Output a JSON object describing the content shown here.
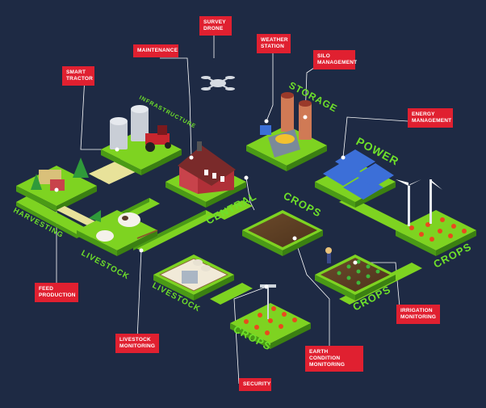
{
  "callouts": {
    "survey_drone": "SURVEY\nDRONE",
    "maintenance": "MAINTENANCE",
    "weather_station": "WEATHER\nSTATION",
    "silo_management": "SILO\nMANAGEMENT",
    "smart_tractor": "SMART\nTRACTOR",
    "energy_management": "ENERGY\nMANAGEMENT",
    "feed_production": "FEED\nPRODUCTION",
    "irrigation_monitoring": "IRRIGATION\nMONITORING",
    "livestock_monitoring": "LIVESTOCK\nMONITORING",
    "earth_condition_monitoring": "EARTH CONDITION\nMONITORING",
    "security": "SECURITY"
  },
  "areas": {
    "infrastructure": "INFRASTRUCTURE",
    "storage": "STORAGE",
    "power": "POWER",
    "central": "CENTRAL",
    "crops_center": "CROPS",
    "crops_right": "CROPS",
    "crops_mid": "CROPS",
    "crops_bottom": "CROPS",
    "harvesting": "HARVESTING",
    "livestock_upper": "LIVESTOCK",
    "livestock_lower": "LIVESTOCK"
  },
  "colors": {
    "background": "#1e2a44",
    "grass": "#7ed321",
    "grass_side": "#4a9a16",
    "callout_red": "#e02030",
    "label_green": "#6ee02a"
  }
}
